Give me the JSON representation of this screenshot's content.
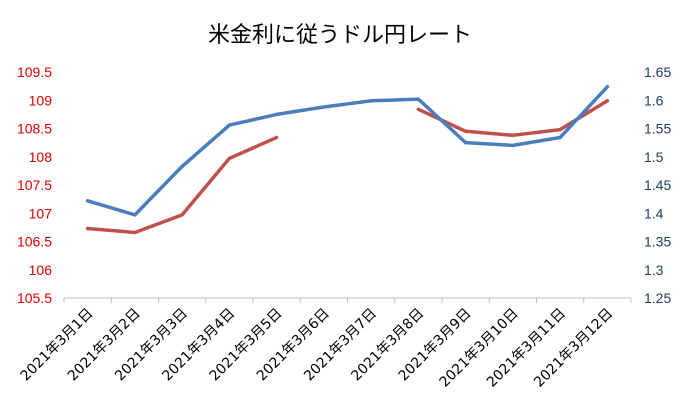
{
  "chart_data": {
    "type": "line",
    "title": "米金利に従うドル円レート",
    "categories": [
      "2021年3月1日",
      "2021年3月2日",
      "2021年3月3日",
      "2021年3月4日",
      "2021年3月5日",
      "2021年3月6日",
      "2021年3月7日",
      "2021年3月8日",
      "2021年3月9日",
      "2021年3月10日",
      "2021年3月11日",
      "2021年3月12日"
    ],
    "series": [
      {
        "axis": "left",
        "color": "#c0504d",
        "values": [
          106.73,
          106.66,
          106.97,
          107.97,
          108.34,
          null,
          null,
          108.84,
          108.45,
          108.38,
          108.48,
          108.99
        ]
      },
      {
        "axis": "right",
        "color": "#4a7ebb",
        "values": [
          1.422,
          1.397,
          1.483,
          1.556,
          1.575,
          1.588,
          1.599,
          1.602,
          1.525,
          1.52,
          1.534,
          1.624
        ]
      }
    ],
    "left_axis": {
      "ylim": [
        105.5,
        109.5
      ],
      "ticks": [
        "105.5",
        "106",
        "106.5",
        "107",
        "107.5",
        "108",
        "108.5",
        "109",
        "109.5"
      ],
      "color": "#e00000"
    },
    "right_axis": {
      "ylim": [
        1.25,
        1.65
      ],
      "ticks": [
        "1.25",
        "1.3",
        "1.35",
        "1.4",
        "1.45",
        "1.5",
        "1.55",
        "1.6",
        "1.65"
      ],
      "color": "#1f3b5e"
    },
    "grid": false,
    "legend": "none"
  }
}
